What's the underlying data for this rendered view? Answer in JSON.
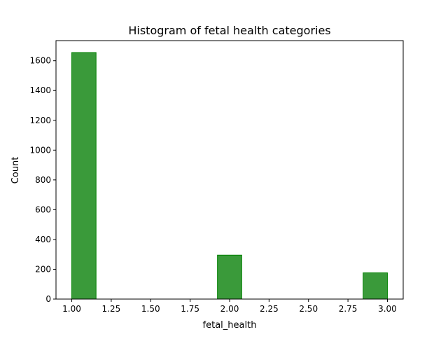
{
  "chart_data": {
    "type": "bar",
    "title": "Histogram of fetal health categories",
    "xlabel": "fetal_health",
    "ylabel": "Count",
    "xlim": [
      0.9,
      3.1
    ],
    "ylim": [
      0,
      1735
    ],
    "x_ticks": [
      1.0,
      1.25,
      1.5,
      1.75,
      2.0,
      2.25,
      2.5,
      2.75,
      3.0
    ],
    "x_tick_labels": [
      "1.00",
      "1.25",
      "1.50",
      "1.75",
      "2.00",
      "2.25",
      "2.50",
      "2.75",
      "3.00"
    ],
    "y_ticks": [
      0,
      200,
      400,
      600,
      800,
      1000,
      1200,
      1400,
      1600
    ],
    "y_tick_labels": [
      "0",
      "200",
      "400",
      "600",
      "800",
      "1000",
      "1200",
      "1400",
      "1600"
    ],
    "bins": [
      {
        "x0": 1.0,
        "x1": 1.1538,
        "value": 1655
      },
      {
        "x0": 1.9231,
        "x1": 2.0769,
        "value": 295
      },
      {
        "x0": 2.8462,
        "x1": 3.0,
        "value": 176
      }
    ],
    "grid": false,
    "legend": "none",
    "colors": {
      "bar_fill": "#3a9a3a",
      "bar_edge": "#008000",
      "axis": "#000000"
    }
  }
}
